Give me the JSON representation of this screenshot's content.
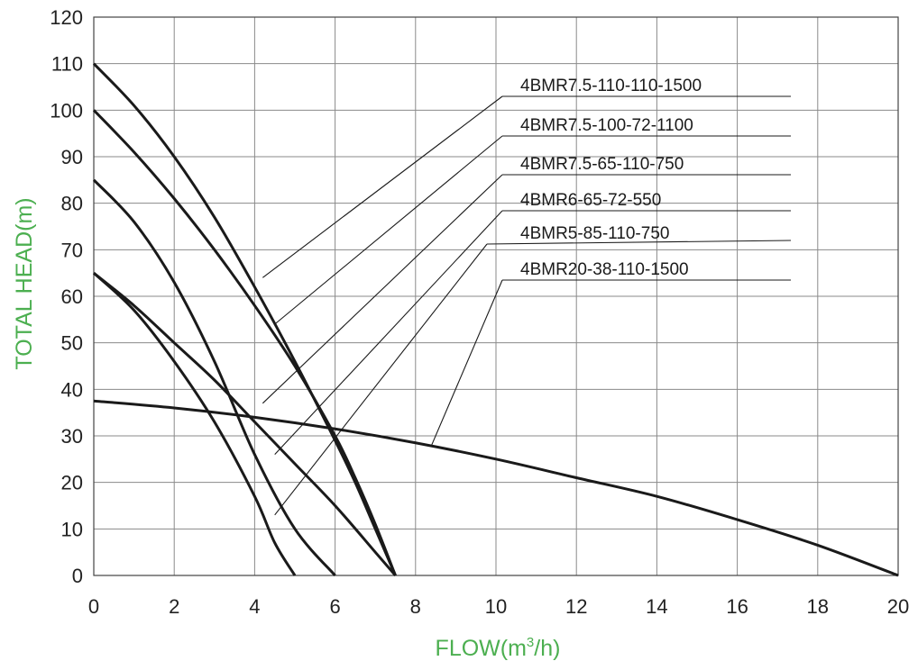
{
  "chart_data": {
    "type": "line",
    "title": "",
    "xlabel_main": "FLOW(m",
    "xlabel_sup": "3",
    "xlabel_tail": "/h)",
    "ylabel": "TOTAL HEAD(m)",
    "xlim": [
      0,
      20
    ],
    "ylim": [
      0,
      120
    ],
    "x_ticks": [
      0,
      2,
      4,
      6,
      8,
      10,
      12,
      14,
      16,
      18,
      20
    ],
    "y_ticks": [
      0,
      10,
      20,
      30,
      40,
      50,
      60,
      70,
      80,
      90,
      100,
      110,
      120
    ],
    "grid": true,
    "legend": "leader-line labels, upper right",
    "label_color": "#4caf50",
    "series": [
      {
        "name": "4BMR7.5-110-110-1500",
        "x": [
          0,
          1,
          2,
          3,
          4,
          5,
          6,
          6.5,
          7,
          7.5
        ],
        "y": [
          110,
          101,
          90,
          77,
          62,
          46,
          29,
          20,
          10,
          0
        ]
      },
      {
        "name": "4BMR7.5-100-72-1100",
        "x": [
          0,
          1,
          2,
          3,
          4,
          5,
          6,
          6.5,
          7,
          7.5
        ],
        "y": [
          100,
          91,
          81,
          70,
          58,
          45,
          30,
          21,
          11,
          0
        ]
      },
      {
        "name": "4BMR7.5-65-110-750",
        "x": [
          0,
          1,
          2,
          3,
          4,
          5,
          6
        ],
        "y": [
          85,
          76,
          63,
          46,
          26,
          10,
          0
        ]
      },
      {
        "name": "4BMR6-65-72-550",
        "x": [
          0,
          1,
          2,
          3,
          4,
          4.5,
          5
        ],
        "y": [
          65,
          57,
          46,
          33,
          17,
          7,
          0
        ]
      },
      {
        "name": "4BMR5-85-110-750",
        "x": [
          0,
          1,
          2,
          3,
          4,
          5,
          6,
          7,
          7.5
        ],
        "y": [
          65,
          58,
          50,
          42,
          33,
          24,
          15,
          5,
          0
        ]
      },
      {
        "name": "4BMR20-38-110-1500",
        "x": [
          0,
          2,
          4,
          6,
          8,
          10,
          12,
          14,
          16,
          18,
          20
        ],
        "y": [
          37.5,
          36,
          34,
          31.5,
          28.5,
          25,
          21,
          17,
          12,
          6.5,
          0
        ]
      }
    ],
    "leaders": [
      {
        "x": 4.2,
        "y": 64
      },
      {
        "x": 4.5,
        "y": 54
      },
      {
        "x": 4.2,
        "y": 37
      },
      {
        "x": 4.5,
        "y": 26
      },
      {
        "x": 4.5,
        "y": 13
      },
      {
        "x": 8.4,
        "y": 28
      }
    ]
  }
}
